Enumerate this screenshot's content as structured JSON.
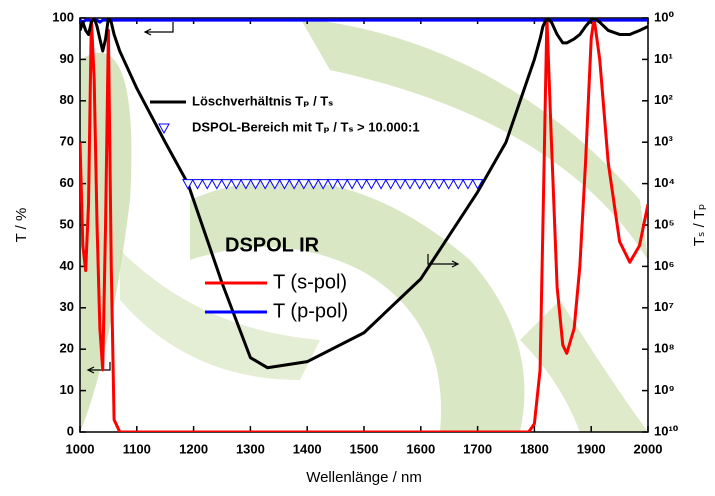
{
  "chart_data": {
    "type": "line",
    "xlabel": "Wellenlänge / nm",
    "ylabel": "T / %",
    "y2label": "Tₛ / Tₚ",
    "legend_title": "DSPOL IR",
    "xlim": [
      1000,
      2000
    ],
    "xticks": [
      1000,
      1100,
      1200,
      1300,
      1400,
      1500,
      1600,
      1700,
      1800,
      1900,
      2000
    ],
    "ylim": [
      0,
      100
    ],
    "yticks": [
      0,
      10,
      20,
      30,
      40,
      50,
      60,
      70,
      80,
      90,
      100
    ],
    "y2lim": [
      1,
      10000000000
    ],
    "y2scale": "log",
    "y2_inverted": true,
    "y2ticks": [
      {
        "value": 1,
        "label": "10⁰"
      },
      {
        "value": 10,
        "label": "10¹"
      },
      {
        "value": 100,
        "label": "10²"
      },
      {
        "value": 1000,
        "label": "10³"
      },
      {
        "value": 10000,
        "label": "10⁴"
      },
      {
        "value": 100000,
        "label": "10⁵"
      },
      {
        "value": 1000000,
        "label": "10⁶"
      },
      {
        "value": 10000000,
        "label": "10⁷"
      },
      {
        "value": 100000000,
        "label": "10⁸"
      },
      {
        "value": 1000000000,
        "label": "10⁹"
      },
      {
        "value": 10000000000,
        "label": "10¹⁰"
      }
    ],
    "x": [
      1000,
      1005,
      1010,
      1015,
      1020,
      1025,
      1030,
      1035,
      1040,
      1045,
      1050,
      1055,
      1060,
      1070,
      1080,
      1100,
      1150,
      1190,
      1250,
      1300,
      1330,
      1400,
      1500,
      1600,
      1700,
      1750,
      1790,
      1800,
      1810,
      1815,
      1822,
      1830,
      1840,
      1850,
      1857,
      1870,
      1880,
      1890,
      1900,
      1905,
      1915,
      1930,
      1950,
      1968,
      1985,
      2000
    ],
    "series": [
      {
        "name": "T (s-pol)",
        "color": "#ff0000",
        "values": [
          70,
          45,
          39,
          55,
          100,
          85,
          50,
          25,
          15,
          50,
          97,
          40,
          3,
          0,
          0,
          0,
          0,
          0,
          0,
          0,
          0,
          0,
          0,
          0,
          0,
          0,
          0,
          2,
          15,
          50,
          100,
          70,
          35,
          21,
          19,
          25,
          40,
          65,
          95,
          100,
          90,
          65,
          46,
          41,
          45,
          55
        ]
      },
      {
        "name": "T (p-pol)",
        "color": "#0000ff",
        "values": [
          99.5,
          99,
          99.5,
          99.5,
          99.5,
          99.5,
          99.5,
          99,
          99.5,
          99.5,
          99.5,
          99.5,
          99.5,
          99.5,
          99.5,
          99.5,
          99.5,
          99.5,
          99.5,
          99.5,
          99.5,
          99.5,
          99.5,
          99.5,
          99.5,
          99.5,
          99.5,
          99.5,
          99.5,
          99.5,
          99.5,
          99.5,
          99.5,
          99.5,
          99.5,
          99.5,
          99.5,
          99.5,
          99.5,
          99.5,
          99.5,
          99.5,
          99.5,
          99.5,
          99.5,
          99.5
        ]
      },
      {
        "name": "Löschverhältnis Tₚ / Tₛ",
        "color": "#000000",
        "axis": "y2",
        "values": [
          2,
          1.26,
          2,
          2.5,
          1.26,
          1,
          1.6,
          3.2,
          6.3,
          3.2,
          1,
          1.26,
          2.5,
          6.3,
          12.6,
          50,
          1000,
          10000,
          2500000,
          160000000,
          280000000,
          200000000,
          40000000,
          2000000,
          16000,
          1000,
          25,
          10,
          3.2,
          1.6,
          1,
          1.26,
          2.5,
          4,
          4,
          3.2,
          2.5,
          1.6,
          1.1,
          1,
          1.26,
          2,
          2.5,
          2.5,
          2,
          1.6
        ]
      },
      {
        "name": "DSPOL-Bereich mit Tₚ / Tₛ > 10.000:1",
        "color": "#0000ff",
        "axis": "y2",
        "marker": "triangle-down",
        "x": [
          1190,
          1207,
          1224,
          1241,
          1258,
          1275,
          1292,
          1309,
          1326,
          1343,
          1360,
          1377,
          1394,
          1411,
          1428,
          1445,
          1462,
          1479,
          1496,
          1513,
          1530,
          1547,
          1564,
          1581,
          1598,
          1615,
          1632,
          1649,
          1666,
          1683,
          1700
        ],
        "values": [
          10000,
          10000,
          10000,
          10000,
          10000,
          10000,
          10000,
          10000,
          10000,
          10000,
          10000,
          10000,
          10000,
          10000,
          10000,
          10000,
          10000,
          10000,
          10000,
          10000,
          10000,
          10000,
          10000,
          10000,
          10000,
          10000,
          10000,
          10000,
          10000,
          10000,
          10000
        ]
      }
    ]
  }
}
